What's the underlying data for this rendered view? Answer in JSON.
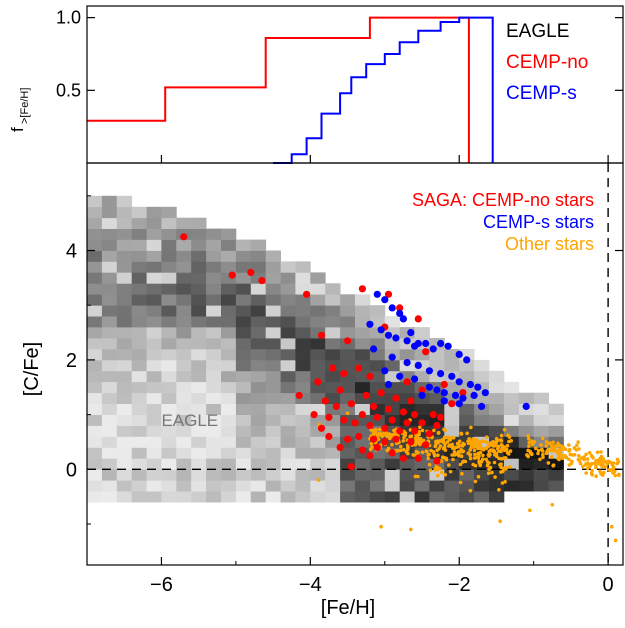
{
  "chart_data": [
    {
      "type": "line",
      "panel": "top",
      "ylabel_main": "f",
      "ylabel_sub": ">[Fe/H]",
      "xlim": [
        -7,
        0.2
      ],
      "ylim": [
        0.0,
        1.08
      ],
      "yticks": [
        {
          "value": 0.5,
          "label": "0.5"
        },
        {
          "value": 1.0,
          "label": "1.0"
        }
      ],
      "legend_position": "top-right",
      "series": [
        {
          "name": "EAGLE",
          "color": "#000000",
          "x": [
            -7,
            0.2
          ],
          "y": [
            1.0,
            1.0
          ]
        },
        {
          "name": "CEMP-no",
          "color": "#ff0000",
          "x": [
            -7.0,
            -5.95,
            -5.95,
            -4.6,
            -4.6,
            -3.2,
            -3.2,
            -1.87,
            -1.87
          ],
          "y": [
            0.29,
            0.29,
            0.52,
            0.52,
            0.86,
            0.86,
            1.0,
            1.0,
            0.0
          ]
        },
        {
          "name": "CEMP-s",
          "color": "#0000ff",
          "x": [
            -4.5,
            -4.25,
            -4.25,
            -4.05,
            -4.05,
            -3.85,
            -3.85,
            -3.6,
            -3.6,
            -3.45,
            -3.45,
            -3.25,
            -3.25,
            -3.0,
            -3.0,
            -2.8,
            -2.8,
            -2.55,
            -2.55,
            -2.25,
            -2.25,
            -2.0,
            -2.0,
            -1.55,
            -1.55
          ],
          "y": [
            0.0,
            0.0,
            0.06,
            0.06,
            0.17,
            0.17,
            0.34,
            0.34,
            0.48,
            0.48,
            0.59,
            0.59,
            0.68,
            0.68,
            0.75,
            0.75,
            0.83,
            0.83,
            0.91,
            0.91,
            0.97,
            0.97,
            1.0,
            1.0,
            0.0
          ]
        }
      ]
    },
    {
      "type": "scatter",
      "panel": "bottom",
      "xlabel": "[Fe/H]",
      "ylabel": "[C/Fe]",
      "xlim": [
        -7,
        0.2
      ],
      "ylim": [
        -1.75,
        5.6
      ],
      "xticks": [
        {
          "value": -6,
          "label": "−6"
        },
        {
          "value": -4,
          "label": "−4"
        },
        {
          "value": -2,
          "label": "−2"
        },
        {
          "value": 0,
          "label": "0"
        }
      ],
      "yticks": [
        {
          "value": 0,
          "label": "0"
        },
        {
          "value": 2,
          "label": "2"
        },
        {
          "value": 4,
          "label": "4"
        }
      ],
      "reference_lines": {
        "horizontal_y": 0,
        "vertical_x": 0
      },
      "legend_position": "top-right",
      "legend": [
        {
          "label": "SAGA: CEMP-no stars",
          "color": "#ff0000"
        },
        {
          "label": "CEMP-s stars",
          "color": "#0000ff"
        },
        {
          "label": "Other stars",
          "color": "#ffa500"
        }
      ],
      "annotation": {
        "label": "EAGLE",
        "x": -6.0,
        "y": 0.9,
        "color": "#777777"
      },
      "density": {
        "series": "EAGLE",
        "colormap": "grayscale",
        "bin_width": 0.2,
        "bin_height": 0.2,
        "band": [
          {
            "x": -7.0,
            "ymin": -0.55,
            "ymax": 5.0
          },
          {
            "x": -6.0,
            "ymin": -0.55,
            "ymax": 4.65
          },
          {
            "x": -5.0,
            "ymin": -0.55,
            "ymax": 4.25
          },
          {
            "x": -4.0,
            "ymin": -0.55,
            "ymax": 3.6
          },
          {
            "x": -3.0,
            "ymin": -0.55,
            "ymax": 2.8
          },
          {
            "x": -2.0,
            "ymin": -0.6,
            "ymax": 2.1
          },
          {
            "x": -1.0,
            "ymin": -0.45,
            "ymax": 1.3
          },
          {
            "x": -0.7,
            "ymin": -0.35,
            "ymax": 1.15
          }
        ],
        "ridge": [
          {
            "x": -7.0,
            "y": 3.5
          },
          {
            "x": -5.0,
            "y": 2.9
          },
          {
            "x": -3.5,
            "y": 1.7
          },
          {
            "x": -2.5,
            "y": 0.8
          },
          {
            "x": -1.5,
            "y": 0.25
          },
          {
            "x": -0.8,
            "y": 0.1
          }
        ]
      },
      "series": [
        {
          "name": "SAGA: CEMP-no stars",
          "color": "#ff0000",
          "x": [
            -5.7,
            -5.05,
            -4.8,
            -4.65,
            -4.05,
            -3.85,
            -3.5,
            -3.3,
            -2.95,
            -2.8,
            -2.55,
            -3.0,
            -2.45,
            -3.7,
            -3.55,
            -3.35,
            -2.7,
            -2.2,
            -3.9,
            -4.15,
            -3.2,
            -3.6,
            -3.25,
            -3.05,
            -2.85,
            -2.65,
            -2.5,
            -2.1,
            -1.95,
            -3.8,
            -3.65,
            -3.45,
            -3.15,
            -2.95,
            -2.75,
            -2.6,
            -2.35,
            -2.25,
            -3.95,
            -3.75,
            -3.55,
            -3.3,
            -3.1,
            -2.9,
            -2.7,
            -2.5,
            -2.3,
            -3.85,
            -3.4,
            -3.2,
            -3.0,
            -2.8,
            -2.6,
            -2.4,
            -3.75,
            -3.5,
            -3.35,
            -3.15,
            -3.0,
            -2.85,
            -2.65,
            -2.45,
            -3.6,
            -3.3,
            -3.1,
            -2.9,
            -3.2,
            -2.75,
            -2.55,
            -2.3,
            -3.45
          ],
          "y": [
            4.25,
            3.55,
            3.6,
            3.45,
            3.2,
            2.45,
            2.35,
            3.3,
            3.2,
            2.95,
            2.75,
            2.6,
            2.15,
            1.85,
            1.75,
            1.85,
            1.6,
            1.55,
            1.6,
            1.35,
            1.7,
            1.45,
            1.35,
            1.4,
            1.3,
            1.25,
            1.45,
            1.2,
            1.4,
            1.25,
            1.15,
            1.2,
            1.15,
            1.1,
            1.05,
            1.0,
            1.0,
            0.95,
            1.0,
            0.95,
            0.9,
            1.0,
            0.95,
            0.9,
            0.85,
            0.85,
            0.8,
            0.75,
            0.85,
            0.8,
            0.75,
            0.7,
            0.7,
            0.65,
            0.6,
            0.55,
            0.6,
            0.55,
            0.5,
            0.55,
            0.5,
            0.45,
            0.4,
            0.35,
            0.4,
            0.3,
            0.25,
            0.2,
            0.2,
            0.15,
            0.05
          ]
        },
        {
          "name": "CEMP-s stars",
          "color": "#0000ff",
          "x": [
            -3.1,
            -3.0,
            -2.9,
            -2.8,
            -2.75,
            -2.65,
            -2.55,
            -3.2,
            -3.05,
            -2.95,
            -2.85,
            -2.7,
            -2.6,
            -2.45,
            -2.35,
            -2.25,
            -2.15,
            -2.0,
            -1.9,
            -3.15,
            -2.9,
            -2.7,
            -2.55,
            -2.4,
            -2.25,
            -2.1,
            -2.0,
            -1.85,
            -1.75,
            -3.0,
            -2.8,
            -2.6,
            -2.4,
            -2.3,
            -2.2,
            -2.05,
            -1.95,
            -1.8,
            -1.65,
            -2.95,
            -2.5,
            -2.2,
            -2.0,
            -1.7,
            -1.1
          ],
          "y": [
            3.2,
            3.1,
            2.95,
            2.85,
            2.75,
            2.5,
            2.3,
            2.65,
            2.55,
            2.45,
            2.4,
            2.35,
            2.25,
            2.3,
            2.2,
            2.3,
            2.25,
            2.1,
            2.0,
            2.2,
            2.05,
            1.95,
            1.9,
            1.8,
            1.75,
            1.7,
            1.6,
            1.55,
            1.5,
            1.8,
            1.7,
            1.65,
            1.5,
            1.45,
            1.4,
            1.35,
            1.3,
            1.35,
            1.4,
            1.55,
            1.35,
            1.25,
            1.2,
            1.15,
            1.15
          ]
        },
        {
          "name": "Other stars",
          "color": "#ffa500",
          "generator": {
            "count": 520,
            "seed": 7,
            "groups": [
              {
                "weight": 0.58,
                "x": [
                  -3.2,
                  -1.3
                ],
                "y_center": {
                  "x0": -3.2,
                  "y0": 0.6,
                  "slope": -0.12
                },
                "y_spread": 0.28
              },
              {
                "weight": 0.12,
                "x": [
                  -2.6,
                  -1.2
                ],
                "y_center": {
                  "x0": -2.6,
                  "y0": 0.1,
                  "slope": -0.05
                },
                "y_spread": 0.35
              },
              {
                "weight": 0.28,
                "x": [
                  -1.1,
                  0.15
                ],
                "y_center": {
                  "x0": -1.1,
                  "y0": 0.45,
                  "slope": -0.35
                },
                "y_spread": 0.22
              },
              {
                "weight": 0.02,
                "x": [
                  -4.6,
                  -0.5
                ],
                "y_center": {
                  "x0": -4.6,
                  "y0": 0.6,
                  "slope": -0.1
                },
                "y_spread": 0.6
              }
            ],
            "outliers": [
              [
                -3.05,
                -1.05
              ],
              [
                -2.65,
                -1.1
              ],
              [
                -1.45,
                -0.95
              ],
              [
                -0.75,
                -0.65
              ],
              [
                0.1,
                -1.3
              ],
              [
                0.05,
                -1.05
              ],
              [
                -1.05,
                -0.75
              ]
            ]
          }
        }
      ]
    }
  ]
}
